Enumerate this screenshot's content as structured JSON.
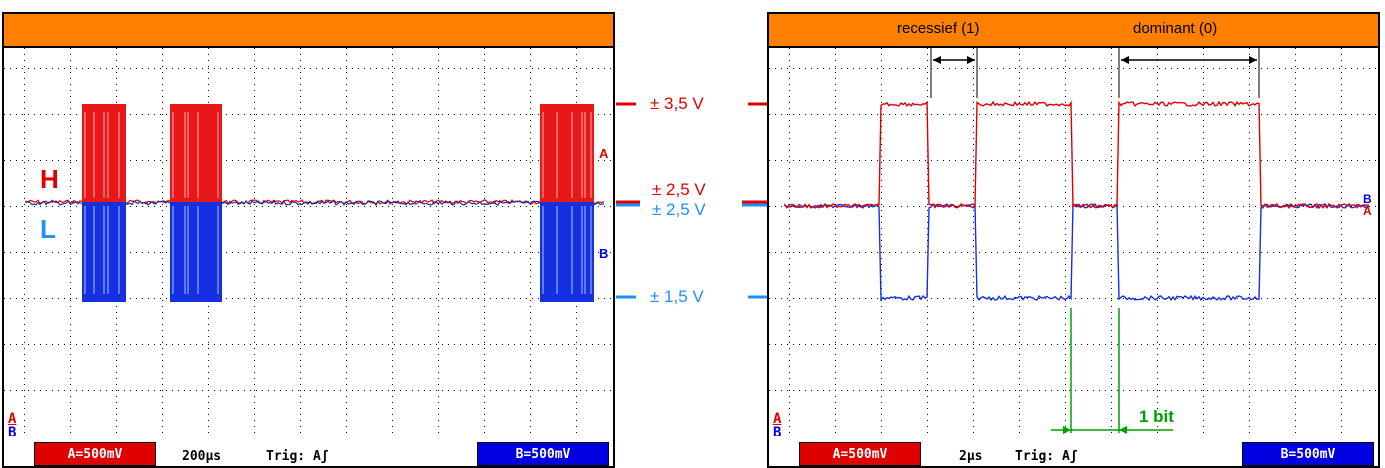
{
  "colors": {
    "orange": "#ff8000",
    "red": "#e00000",
    "blue": "#0050e0",
    "green": "#00a000"
  },
  "left_scope": {
    "ch_a": "A=500mV",
    "timebase": "200µs",
    "trigger": "Trig: Aʃ",
    "ch_b": "B=500mV",
    "label_h": "H",
    "label_l": "L",
    "marker_a": "A",
    "marker_b": "B"
  },
  "right_scope": {
    "ch_a": "A=500mV",
    "timebase": "2µs",
    "trigger": "Trig: Aʃ",
    "ch_b": "B=500mV",
    "recessive_label": "recessief (1)",
    "dominant_label": "dominant (0)",
    "bit_label": "1 bit",
    "marker_a": "A",
    "marker_b": "B"
  },
  "levels": {
    "high": "± 3,5 V",
    "mid_red": "± 2,5 V",
    "mid_blue": "± 2,5 V",
    "low": "± 1,5 V"
  },
  "ab_marker": {
    "a": "A",
    "b": "B"
  }
}
